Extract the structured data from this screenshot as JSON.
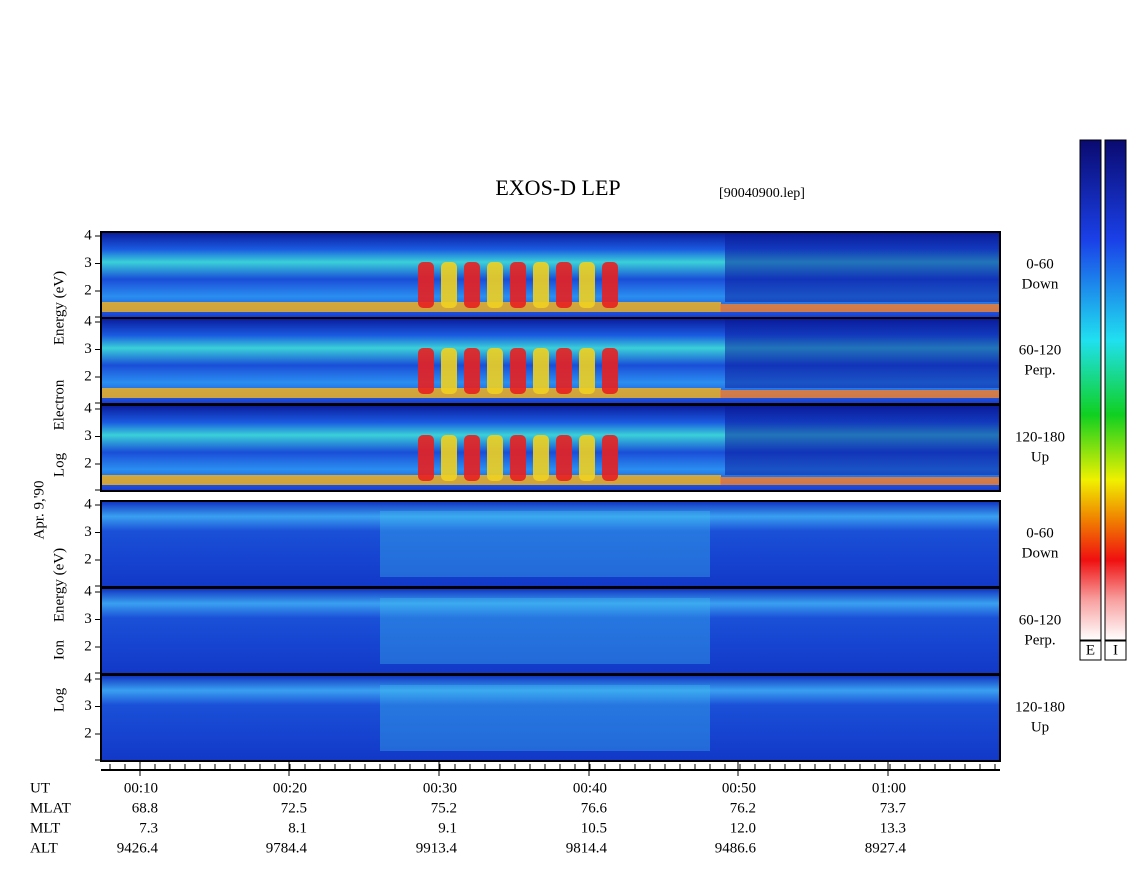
{
  "title": "EXOS-D LEP",
  "file": "[90040900.lep]",
  "date": "Apr. 9,'90",
  "electron_axis": [
    "Log",
    "Electron",
    "Energy (eV)"
  ],
  "ion_axis": [
    "Log",
    "Ion",
    "Energy (eV)"
  ],
  "panels": [
    {
      "label": [
        "0-60",
        "Down"
      ],
      "ticks": [
        "4",
        "3",
        "2"
      ]
    },
    {
      "label": [
        "60-120",
        "Perp."
      ],
      "ticks": [
        "4",
        "3",
        "2"
      ]
    },
    {
      "label": [
        "120-180",
        "Up"
      ],
      "ticks": [
        "4",
        "3",
        "2"
      ]
    },
    {
      "label": [
        "0-60",
        "Down"
      ],
      "ticks": [
        "4",
        "3",
        "2"
      ]
    },
    {
      "label": [
        "60-120",
        "Perp."
      ],
      "ticks": [
        "4",
        "3",
        "2"
      ]
    },
    {
      "label": [
        "120-180",
        "Up"
      ],
      "ticks": [
        "4",
        "3",
        "2"
      ]
    }
  ],
  "colorbars": [
    "E",
    "I"
  ],
  "ephemeris": {
    "rows": [
      "UT",
      "MLAT",
      "MLT",
      "ALT"
    ],
    "columns": [
      [
        "00:10",
        "68.8",
        "7.3",
        "9426.4"
      ],
      [
        "00:20",
        "72.5",
        "8.1",
        "9784.4"
      ],
      [
        "00:30",
        "75.2",
        "9.1",
        "9913.4"
      ],
      [
        "00:40",
        "76.6",
        "10.5",
        "9814.4"
      ],
      [
        "00:50",
        "76.2",
        "12.0",
        "9486.6"
      ],
      [
        "01:00",
        "73.7",
        "13.3",
        "8927.4"
      ]
    ]
  }
}
